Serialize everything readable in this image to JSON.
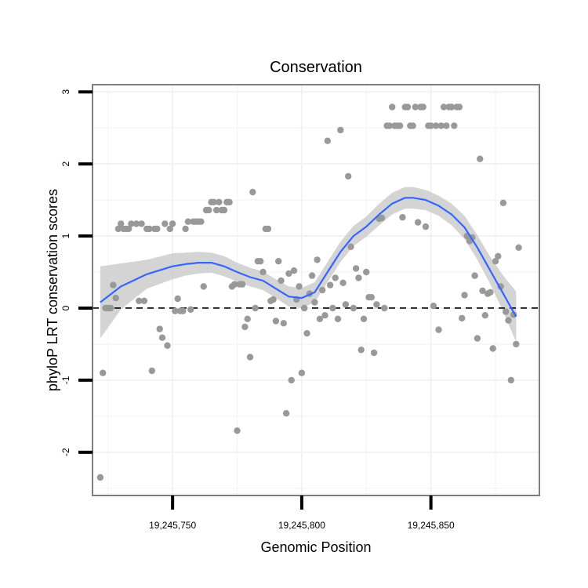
{
  "chart_data": {
    "type": "scatter",
    "title": "Conservation",
    "xlabel": "Genomic Position",
    "ylabel": "phyloP LRT conservation scores",
    "xlim": [
      19245719,
      19245892
    ],
    "ylim": [
      -2.6,
      3.1
    ],
    "x_ticks": [
      19245750,
      19245800,
      19245850
    ],
    "x_tick_labels": [
      "19,245,750",
      "19,245,800",
      "19,245,850"
    ],
    "y_ticks": [
      -2,
      -1,
      0,
      1,
      2,
      3
    ],
    "y_tick_labels": [
      "-2",
      "-1",
      "0",
      "1",
      "2",
      "3"
    ],
    "x_minor_grid": [
      19245725,
      19245775,
      19245825,
      19245875
    ],
    "y_minor_grid": [
      -2.5,
      -1.5,
      -0.5,
      0.5,
      1.5,
      2.5
    ],
    "reference_line": {
      "y": 0,
      "style": "dashed"
    },
    "colors": {
      "points": "#999999",
      "smooth": "#3366ff",
      "ribbon": "#cccccc",
      "grid": "#f2f2f2",
      "border": "#7f7f7f"
    },
    "points": [
      [
        19245722,
        -2.35
      ],
      [
        19245723,
        -0.9
      ],
      [
        19245724,
        0.0
      ],
      [
        19245725,
        0.0
      ],
      [
        19245726,
        0.0
      ],
      [
        19245727,
        0.32
      ],
      [
        19245728,
        0.14
      ],
      [
        19245729,
        1.1
      ],
      [
        19245730,
        1.17
      ],
      [
        19245731,
        1.1
      ],
      [
        19245732,
        1.1
      ],
      [
        19245733,
        1.1
      ],
      [
        19245734,
        1.17
      ],
      [
        19245736,
        1.17
      ],
      [
        19245737,
        0.1
      ],
      [
        19245738,
        1.17
      ],
      [
        19245739,
        0.1
      ],
      [
        19245740,
        1.1
      ],
      [
        19245741,
        1.1
      ],
      [
        19245742,
        -0.87
      ],
      [
        19245743,
        1.1
      ],
      [
        19245744,
        1.1
      ],
      [
        19245745,
        -0.29
      ],
      [
        19245746,
        -0.41
      ],
      [
        19245747,
        1.17
      ],
      [
        19245748,
        -0.52
      ],
      [
        19245749,
        1.1
      ],
      [
        19245750,
        1.17
      ],
      [
        19245751,
        -0.04
      ],
      [
        19245752,
        0.13
      ],
      [
        19245753,
        -0.04
      ],
      [
        19245754,
        -0.04
      ],
      [
        19245755,
        1.1
      ],
      [
        19245756,
        1.2
      ],
      [
        19245757,
        -0.02
      ],
      [
        19245758,
        1.2
      ],
      [
        19245759,
        1.2
      ],
      [
        19245760,
        1.2
      ],
      [
        19245761,
        1.2
      ],
      [
        19245762,
        0.3
      ],
      [
        19245763,
        1.36
      ],
      [
        19245764,
        1.36
      ],
      [
        19245765,
        1.47
      ],
      [
        19245766,
        1.47
      ],
      [
        19245767,
        1.36
      ],
      [
        19245768,
        1.47
      ],
      [
        19245769,
        1.36
      ],
      [
        19245770,
        1.36
      ],
      [
        19245771,
        1.47
      ],
      [
        19245772,
        1.47
      ],
      [
        19245773,
        0.3
      ],
      [
        19245774,
        0.33
      ],
      [
        19245775,
        -1.7
      ],
      [
        19245776,
        0.33
      ],
      [
        19245777,
        0.33
      ],
      [
        19245778,
        -0.26
      ],
      [
        19245779,
        -0.15
      ],
      [
        19245780,
        -0.68
      ],
      [
        19245781,
        1.61
      ],
      [
        19245782,
        0.0
      ],
      [
        19245783,
        0.65
      ],
      [
        19245784,
        0.65
      ],
      [
        19245785,
        0.5
      ],
      [
        19245786,
        1.1
      ],
      [
        19245787,
        1.1
      ],
      [
        19245788,
        0.1
      ],
      [
        19245789,
        0.12
      ],
      [
        19245790,
        -0.18
      ],
      [
        19245791,
        0.65
      ],
      [
        19245792,
        0.38
      ],
      [
        19245793,
        -0.21
      ],
      [
        19245794,
        -1.46
      ],
      [
        19245795,
        0.48
      ],
      [
        19245796,
        -1.0
      ],
      [
        19245797,
        0.52
      ],
      [
        19245798,
        0.12
      ],
      [
        19245799,
        0.3
      ],
      [
        19245800,
        -0.9
      ],
      [
        19245801,
        0.0
      ],
      [
        19245802,
        -0.35
      ],
      [
        19245803,
        0.2
      ],
      [
        19245804,
        0.45
      ],
      [
        19245805,
        0.08
      ],
      [
        19245806,
        0.67
      ],
      [
        19245807,
        -0.15
      ],
      [
        19245808,
        0.25
      ],
      [
        19245809,
        -0.1
      ],
      [
        19245810,
        2.32
      ],
      [
        19245811,
        0.32
      ],
      [
        19245812,
        0.0
      ],
      [
        19245813,
        0.42
      ],
      [
        19245814,
        -0.15
      ],
      [
        19245815,
        2.47
      ],
      [
        19245816,
        0.35
      ],
      [
        19245817,
        0.05
      ],
      [
        19245818,
        1.83
      ],
      [
        19245819,
        0.85
      ],
      [
        19245820,
        0.0
      ],
      [
        19245821,
        0.55
      ],
      [
        19245822,
        0.42
      ],
      [
        19245823,
        -0.58
      ],
      [
        19245824,
        -0.15
      ],
      [
        19245825,
        0.5
      ],
      [
        19245826,
        0.15
      ],
      [
        19245827,
        0.15
      ],
      [
        19245828,
        -0.62
      ],
      [
        19245829,
        0.05
      ],
      [
        19245830,
        1.24
      ],
      [
        19245831,
        1.25
      ],
      [
        19245832,
        0.0
      ],
      [
        19245833,
        2.53
      ],
      [
        19245834,
        2.53
      ],
      [
        19245835,
        2.79
      ],
      [
        19245836,
        2.53
      ],
      [
        19245837,
        2.53
      ],
      [
        19245838,
        2.53
      ],
      [
        19245839,
        1.26
      ],
      [
        19245840,
        2.79
      ],
      [
        19245841,
        2.79
      ],
      [
        19245842,
        2.53
      ],
      [
        19245843,
        2.53
      ],
      [
        19245844,
        2.79
      ],
      [
        19245845,
        1.19
      ],
      [
        19245846,
        2.79
      ],
      [
        19245847,
        2.79
      ],
      [
        19245848,
        1.13
      ],
      [
        19245849,
        2.53
      ],
      [
        19245850,
        2.53
      ],
      [
        19245851,
        0.03
      ],
      [
        19245852,
        2.53
      ],
      [
        19245853,
        -0.3
      ],
      [
        19245854,
        2.53
      ],
      [
        19245855,
        2.79
      ],
      [
        19245856,
        2.53
      ],
      [
        19245857,
        2.79
      ],
      [
        19245858,
        2.79
      ],
      [
        19245859,
        2.53
      ],
      [
        19245860,
        2.79
      ],
      [
        19245861,
        2.79
      ],
      [
        19245862,
        -0.14
      ],
      [
        19245863,
        0.18
      ],
      [
        19245864,
        1.0
      ],
      [
        19245865,
        0.93
      ],
      [
        19245866,
        0.98
      ],
      [
        19245867,
        0.45
      ],
      [
        19245868,
        -0.42
      ],
      [
        19245869,
        2.07
      ],
      [
        19245870,
        0.24
      ],
      [
        19245871,
        -0.1
      ],
      [
        19245872,
        0.2
      ],
      [
        19245873,
        0.22
      ],
      [
        19245874,
        -0.56
      ],
      [
        19245875,
        0.65
      ],
      [
        19245876,
        0.72
      ],
      [
        19245877,
        0.3
      ],
      [
        19245878,
        1.46
      ],
      [
        19245879,
        -0.05
      ],
      [
        19245880,
        -0.17
      ],
      [
        19245881,
        -1.0
      ],
      [
        19245882,
        -0.09
      ],
      [
        19245883,
        -0.5
      ],
      [
        19245884,
        0.84
      ]
    ],
    "smooth": {
      "x": [
        19245722,
        19245730,
        19245740,
        19245750,
        19245755,
        19245760,
        19245765,
        19245770,
        19245775,
        19245780,
        19245785,
        19245790,
        19245795,
        19245800,
        19245805,
        19245810,
        19245815,
        19245820,
        19245825,
        19245830,
        19245835,
        19245840,
        19245843,
        19245848,
        19245853,
        19245858,
        19245863,
        19245868,
        19245873,
        19245878,
        19245883
      ],
      "y": [
        0.08,
        0.3,
        0.47,
        0.58,
        0.61,
        0.63,
        0.63,
        0.58,
        0.5,
        0.43,
        0.38,
        0.27,
        0.16,
        0.14,
        0.22,
        0.5,
        0.78,
        1.0,
        1.13,
        1.3,
        1.45,
        1.53,
        1.53,
        1.5,
        1.42,
        1.3,
        1.12,
        0.84,
        0.52,
        0.2,
        -0.12
      ],
      "lower": [
        -0.42,
        -0.02,
        0.27,
        0.4,
        0.45,
        0.48,
        0.49,
        0.44,
        0.37,
        0.3,
        0.25,
        0.14,
        0.02,
        0.0,
        0.08,
        0.36,
        0.64,
        0.86,
        0.99,
        1.15,
        1.3,
        1.38,
        1.38,
        1.36,
        1.28,
        1.15,
        0.96,
        0.67,
        0.33,
        -0.05,
        -0.47
      ],
      "upper": [
        0.58,
        0.62,
        0.67,
        0.76,
        0.77,
        0.78,
        0.77,
        0.72,
        0.63,
        0.56,
        0.51,
        0.4,
        0.3,
        0.28,
        0.36,
        0.64,
        0.92,
        1.14,
        1.27,
        1.45,
        1.6,
        1.68,
        1.68,
        1.64,
        1.56,
        1.45,
        1.28,
        1.01,
        0.71,
        0.45,
        0.23
      ]
    }
  }
}
